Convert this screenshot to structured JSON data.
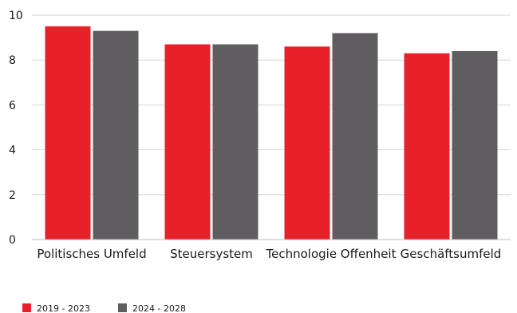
{
  "chart_data": {
    "type": "bar",
    "categories": [
      "Politisches Umfeld",
      "Steuersystem",
      "Technologie Offenheit",
      "Geschäftsumfeld"
    ],
    "series": [
      {
        "name": "2019 - 2023",
        "color": "#e8202a",
        "values": [
          9.5,
          8.7,
          8.6,
          8.3
        ]
      },
      {
        "name": "2024 - 2028",
        "color": "#5f5d60",
        "values": [
          9.3,
          8.7,
          9.2,
          8.4
        ]
      }
    ],
    "ylim": [
      0,
      10
    ],
    "yticks": [
      "0",
      "2",
      "4",
      "6",
      "8",
      "10"
    ],
    "grid": true,
    "legend_position": "bottom-left"
  }
}
